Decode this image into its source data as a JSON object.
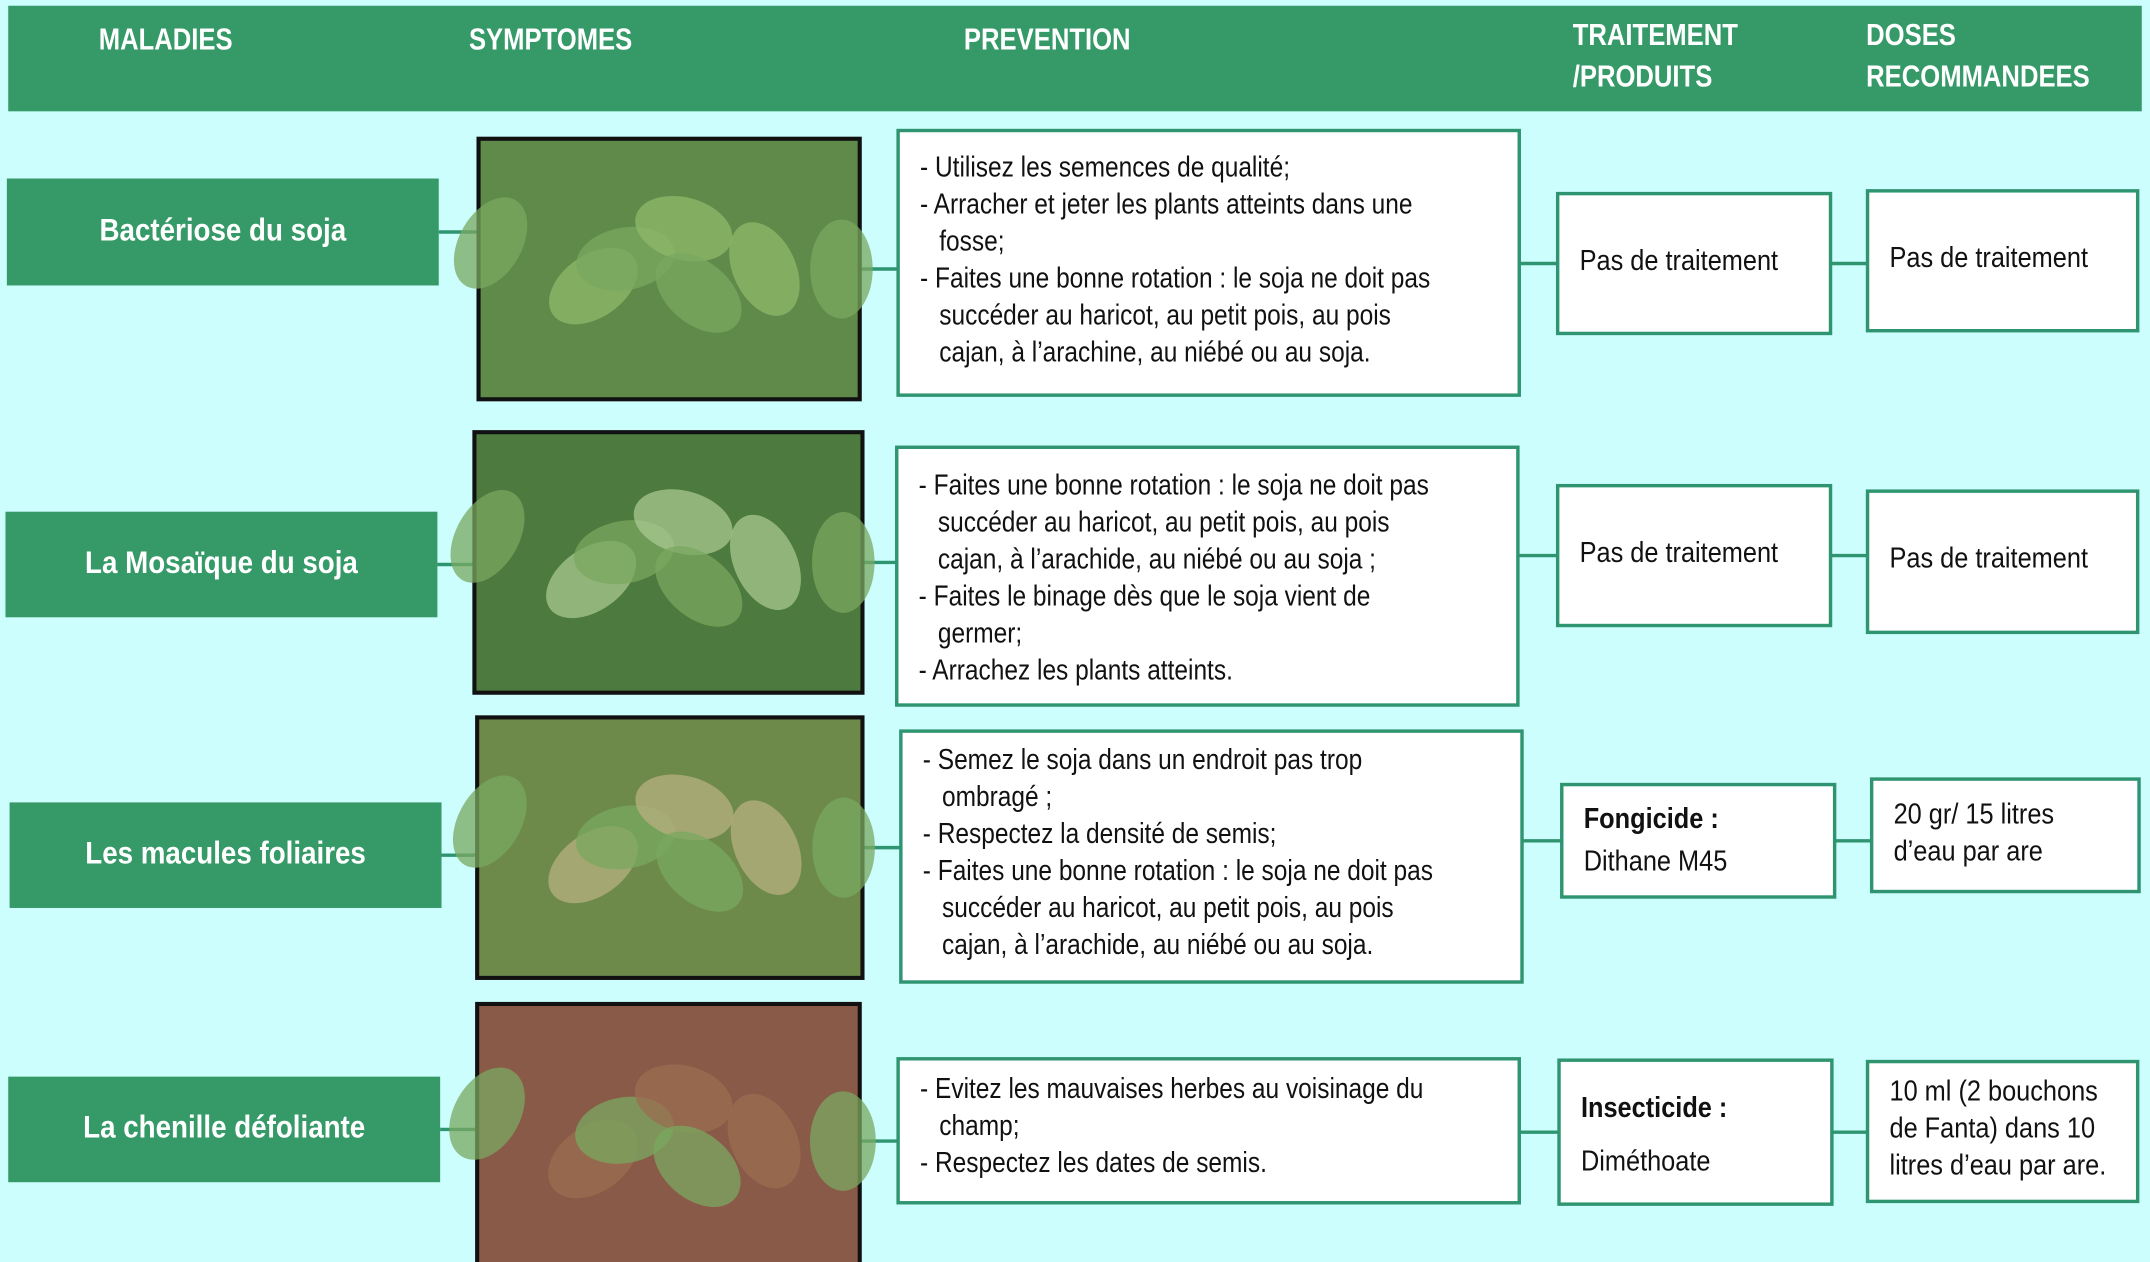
{
  "header": {
    "columns": [
      [
        "MALADIES"
      ],
      [
        "SYMPTOMES"
      ],
      [
        "PREVENTION"
      ],
      [
        "TRAITEMENT",
        "/PRODUITS"
      ],
      [
        "DOSES",
        "RECOMMANDEES"
      ]
    ]
  },
  "rows": [
    {
      "disease": "Bactériose du soja",
      "prevention": [
        "- Utilisez les semences de qualité;",
        "- Arracher et jeter les plants atteints dans une",
        "fosse;",
        "- Faites  une bonne rotation : le soja ne doit pas",
        "succéder au haricot, au petit pois, au pois",
        "cajan, à l’arachine, au niébé ou au soja."
      ],
      "treatment": [
        {
          "text": "Pas de traitement",
          "bold": false
        }
      ],
      "dose": [
        "Pas de traitement"
      ]
    },
    {
      "disease": "La Mosaïque du soja",
      "prevention": [
        "- Faites  une bonne rotation : le soja ne doit pas",
        "succéder au haricot, au petit pois, au pois",
        "cajan, à l’arachide, au niébé ou au soja ;",
        "- Faites  le binage dès que le soja vient de",
        "germer;",
        "- Arrachez les plants atteints."
      ],
      "treatment": [
        {
          "text": "Pas de traitement",
          "bold": false
        }
      ],
      "dose": [
        "Pas de traitement"
      ]
    },
    {
      "disease": "Les macules foliaires",
      "prevention": [
        "- Semez le soja dans un endroit pas trop",
        "ombragé ;",
        "- Respectez  la densité de semis;",
        "- Faites  une bonne rotation : le soja ne doit pas",
        "succéder au haricot, au petit pois, au pois",
        "cajan, à l’arachide, au niébé ou au soja."
      ],
      "treatment": [
        {
          "text": "Fongicide :",
          "bold": true
        },
        {
          "text": "Dithane M45",
          "bold": false
        }
      ],
      "dose": [
        "20 gr/ 15 litres",
        "d’eau par are"
      ]
    },
    {
      "disease": "La chenille défoliante",
      "prevention": [
        "- Evitez les mauvaises herbes au voisinage du",
        "champ;",
        "- Respectez  les dates de semis."
      ],
      "treatment": [
        {
          "text": "Insecticide :",
          "bold": true
        },
        {
          "text": "Diméthoate",
          "bold": false
        }
      ],
      "dose": [
        "10 ml (2 bouchons",
        "de Fanta) dans 10",
        "litres d’eau par are."
      ]
    }
  ]
}
